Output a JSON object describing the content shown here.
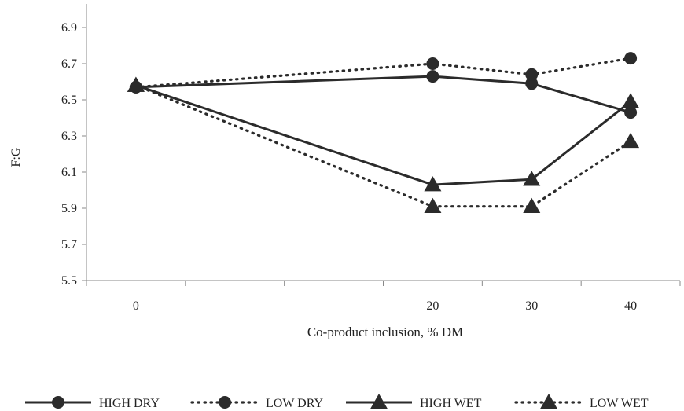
{
  "chart_data": {
    "type": "line",
    "title": "",
    "xlabel": "Co-product inclusion, % DM",
    "ylabel": "F:G",
    "ylim": [
      5.5,
      7.0
    ],
    "yticks": [
      "5.5",
      "5.7",
      "5.9",
      "6.1",
      "6.3",
      "6.5",
      "6.7",
      "6.9"
    ],
    "categories": [
      "0",
      "",
      "",
      "20",
      "30",
      "40"
    ],
    "grid": false,
    "legend_position": "bottom",
    "series": [
      {
        "name": "HIGH DRY",
        "marker": "circle",
        "style": "solid",
        "color": "#2b2b2b",
        "points": [
          {
            "x": "0",
            "y": 6.57
          },
          {
            "x": "20",
            "y": 6.63
          },
          {
            "x": "30",
            "y": 6.59
          },
          {
            "x": "40",
            "y": 6.43
          }
        ]
      },
      {
        "name": "LOW DRY",
        "marker": "circle",
        "style": "dotted",
        "color": "#2b2b2b",
        "points": [
          {
            "x": "0",
            "y": 6.57
          },
          {
            "x": "20",
            "y": 6.7
          },
          {
            "x": "30",
            "y": 6.64
          },
          {
            "x": "40",
            "y": 6.73
          }
        ]
      },
      {
        "name": "HIGH WET",
        "marker": "triangle",
        "style": "solid",
        "color": "#2b2b2b",
        "points": [
          {
            "x": "0",
            "y": 6.58
          },
          {
            "x": "20",
            "y": 6.03
          },
          {
            "x": "30",
            "y": 6.06
          },
          {
            "x": "40",
            "y": 6.49
          }
        ]
      },
      {
        "name": "LOW WET",
        "marker": "triangle",
        "style": "dotted",
        "color": "#2b2b2b",
        "points": [
          {
            "x": "0",
            "y": 6.58
          },
          {
            "x": "20",
            "y": 5.91
          },
          {
            "x": "30",
            "y": 5.91
          },
          {
            "x": "40",
            "y": 6.27
          }
        ]
      }
    ]
  }
}
